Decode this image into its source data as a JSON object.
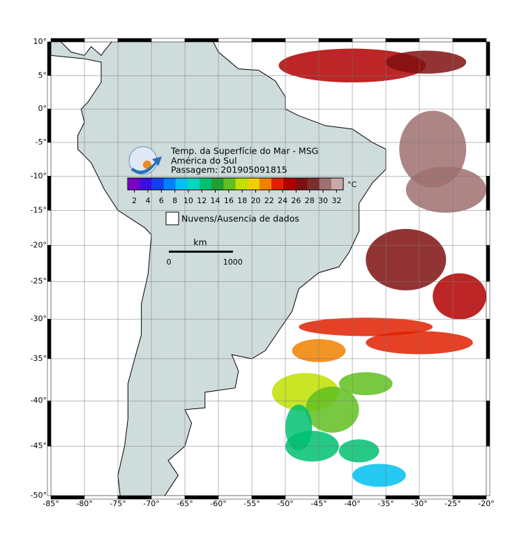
{
  "map": {
    "xlim": [
      -85,
      -20
    ],
    "ylim": [
      -50,
      10
    ],
    "xticks": [
      {
        "value": -85,
        "label": "-85°"
      },
      {
        "value": -80,
        "label": "-80°"
      },
      {
        "value": -75,
        "label": "-75°"
      },
      {
        "value": -70,
        "label": "-70°"
      },
      {
        "value": -65,
        "label": "-65°"
      },
      {
        "value": -60,
        "label": "-60°"
      },
      {
        "value": -55,
        "label": "-55°"
      },
      {
        "value": -50,
        "label": "-50°"
      },
      {
        "value": -45,
        "label": "-45°"
      },
      {
        "value": -40,
        "label": "-40°"
      },
      {
        "value": -35,
        "label": "-35°"
      },
      {
        "value": -30,
        "label": "-30°"
      },
      {
        "value": -25,
        "label": "-25°"
      },
      {
        "value": -20,
        "label": "-20°"
      }
    ],
    "yticks": [
      {
        "value": 10,
        "label": "10°"
      },
      {
        "value": 5,
        "label": "5°"
      },
      {
        "value": 0,
        "label": "0°"
      },
      {
        "value": -5,
        "label": "-5°"
      },
      {
        "value": -10,
        "label": "-10°"
      },
      {
        "value": -15,
        "label": "-15°"
      },
      {
        "value": -20,
        "label": "-20°"
      },
      {
        "value": -25,
        "label": "-25°"
      },
      {
        "value": -30,
        "label": "-30°"
      },
      {
        "value": -35,
        "label": "-35°"
      },
      {
        "value": -40,
        "label": "-40°"
      },
      {
        "value": -45,
        "label": "-45°"
      },
      {
        "value": -50,
        "label": "-50°"
      }
    ]
  },
  "legend": {
    "title_lines": [
      "Temp. da Superfície do Mar - MSG",
      "América do Sul",
      "Passagem: 201905091815"
    ],
    "unit": "°C",
    "clim": [
      1,
      33
    ],
    "colorbar_ticks": [
      2,
      4,
      6,
      8,
      10,
      12,
      14,
      16,
      18,
      20,
      22,
      24,
      26,
      28,
      30,
      32
    ],
    "colors": [
      "#7a00c8",
      "#3a10e0",
      "#1040f0",
      "#0080ff",
      "#00c0f0",
      "#00d8c0",
      "#00c070",
      "#20a030",
      "#60c020",
      "#c0e000",
      "#f0d000",
      "#f08000",
      "#e02000",
      "#b00000",
      "#801010",
      "#7a3030",
      "#a07070",
      "#c8a8a8"
    ],
    "no_data": "Nuvens/Ausencia de dados"
  },
  "scale": {
    "unit": "km",
    "labels": [
      0,
      1000
    ]
  }
}
